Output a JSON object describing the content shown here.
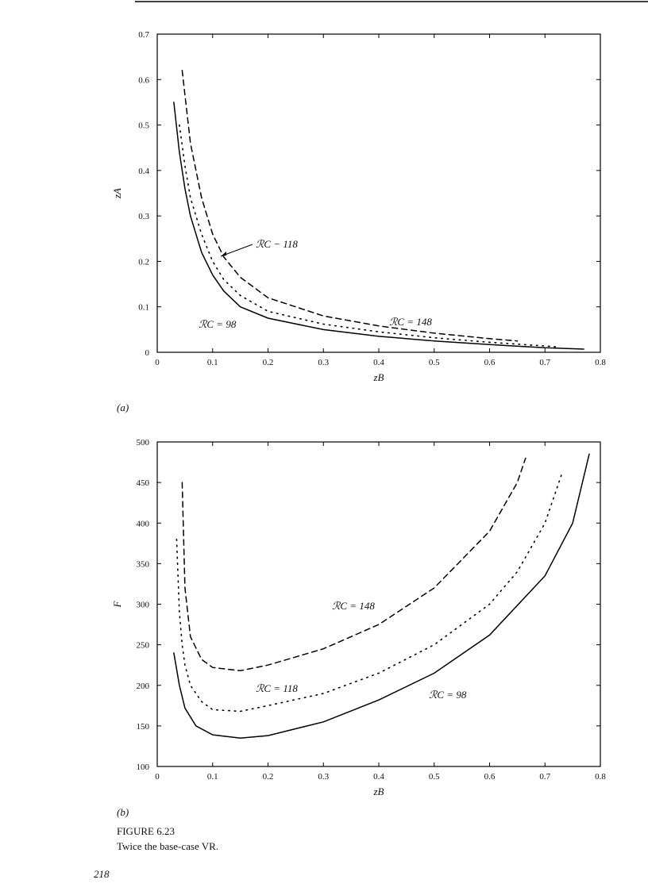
{
  "chart_data": [
    {
      "type": "line",
      "label": "(a)",
      "x_label": "zB",
      "y_label": "zA",
      "xlim": [
        0,
        0.8
      ],
      "xticks": [
        0,
        0.1,
        0.2,
        0.3,
        0.4,
        0.5,
        0.6,
        0.7,
        0.8
      ],
      "ylim": [
        0,
        0.7
      ],
      "yticks": [
        0,
        0.1,
        0.2,
        0.3,
        0.4,
        0.5,
        0.6,
        0.7
      ],
      "series": [
        {
          "name": "ℛC = 148",
          "color": "#000",
          "dash": "dashed",
          "x": [
            0.045,
            0.06,
            0.08,
            0.1,
            0.12,
            0.15,
            0.2,
            0.3,
            0.4,
            0.5,
            0.6,
            0.65
          ],
          "values": [
            0.62,
            0.46,
            0.34,
            0.26,
            0.21,
            0.165,
            0.12,
            0.08,
            0.058,
            0.042,
            0.03,
            0.025
          ]
        },
        {
          "name": "ℛC − 118",
          "color": "#000",
          "dash": "dotted",
          "x": [
            0.04,
            0.05,
            0.06,
            0.08,
            0.1,
            0.12,
            0.15,
            0.2,
            0.3,
            0.4,
            0.5,
            0.6,
            0.7,
            0.72
          ],
          "values": [
            0.5,
            0.41,
            0.34,
            0.26,
            0.2,
            0.16,
            0.125,
            0.09,
            0.062,
            0.045,
            0.032,
            0.022,
            0.014,
            0.012
          ]
        },
        {
          "name": "ℛC = 98",
          "color": "#000",
          "dash": "solid",
          "x": [
            0.03,
            0.04,
            0.05,
            0.06,
            0.08,
            0.1,
            0.12,
            0.15,
            0.2,
            0.3,
            0.4,
            0.5,
            0.6,
            0.7,
            0.77
          ],
          "values": [
            0.55,
            0.44,
            0.36,
            0.3,
            0.22,
            0.17,
            0.135,
            0.1,
            0.075,
            0.05,
            0.035,
            0.025,
            0.017,
            0.01,
            0.007
          ]
        }
      ]
    },
    {
      "type": "line",
      "label": "(b)",
      "x_label": "zB",
      "y_label": "F",
      "xlim": [
        0,
        0.8
      ],
      "xticks": [
        0,
        0.1,
        0.2,
        0.3,
        0.4,
        0.5,
        0.6,
        0.7,
        0.8
      ],
      "ylim": [
        100,
        500
      ],
      "yticks": [
        100,
        150,
        200,
        250,
        300,
        350,
        400,
        450,
        500
      ],
      "series": [
        {
          "name": "ℛC = 148",
          "color": "#000",
          "dash": "dashed",
          "x": [
            0.045,
            0.05,
            0.06,
            0.08,
            0.1,
            0.15,
            0.2,
            0.3,
            0.4,
            0.5,
            0.6,
            0.65,
            0.665
          ],
          "values": [
            450,
            320,
            260,
            232,
            222,
            218,
            225,
            245,
            275,
            320,
            390,
            450,
            480
          ]
        },
        {
          "name": "ℛC = 118",
          "color": "#000",
          "dash": "dotted",
          "x": [
            0.035,
            0.04,
            0.045,
            0.05,
            0.06,
            0.08,
            0.1,
            0.15,
            0.2,
            0.3,
            0.4,
            0.5,
            0.6,
            0.65,
            0.7,
            0.73
          ],
          "values": [
            380,
            290,
            250,
            225,
            200,
            180,
            170,
            168,
            175,
            190,
            215,
            250,
            300,
            340,
            400,
            460
          ]
        },
        {
          "name": "ℛC = 98",
          "color": "#000",
          "dash": "solid",
          "x": [
            0.03,
            0.04,
            0.05,
            0.07,
            0.1,
            0.15,
            0.2,
            0.3,
            0.4,
            0.5,
            0.6,
            0.7,
            0.75,
            0.78
          ],
          "values": [
            240,
            200,
            172,
            150,
            139,
            135,
            138,
            155,
            182,
            215,
            262,
            335,
            400,
            485
          ]
        }
      ]
    }
  ],
  "caption": {
    "number": "FIGURE 6.23",
    "text": "Twice the base-case VR."
  },
  "page_number": "218"
}
